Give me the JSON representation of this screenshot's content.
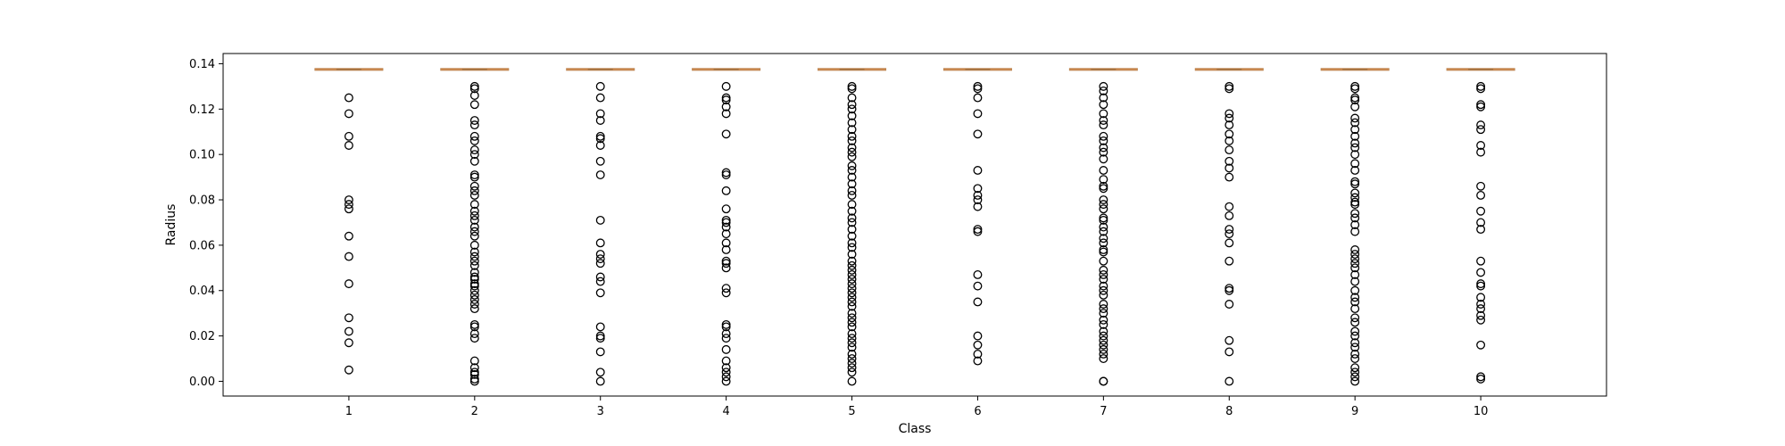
{
  "chart_data": {
    "type": "boxplot",
    "title": "",
    "xlabel": "Class",
    "ylabel": "Radius",
    "ylim": [
      -0.0065,
      0.1445
    ],
    "yticks": [
      0.0,
      0.02,
      0.04,
      0.06,
      0.08,
      0.1,
      0.12,
      0.14
    ],
    "ytick_labels": [
      "0.00",
      "0.02",
      "0.04",
      "0.06",
      "0.08",
      "0.10",
      "0.12",
      "0.14"
    ],
    "categories": [
      "1",
      "2",
      "3",
      "4",
      "5",
      "6",
      "7",
      "8",
      "9",
      "10"
    ],
    "grid": false,
    "legend": "none",
    "colors": {
      "median": "#c8874f",
      "box": "#b08050",
      "outlier_stroke": "#000000",
      "axes": "#000000"
    },
    "series": [
      {
        "category": "1",
        "q1": 0.1375,
        "median": 0.1375,
        "q3": 0.1375,
        "whisker_low": 0.1375,
        "whisker_high": 0.1375,
        "outliers": [
          0.125,
          0.118,
          0.108,
          0.104,
          0.08,
          0.078,
          0.076,
          0.064,
          0.055,
          0.043,
          0.028,
          0.022,
          0.017,
          0.005
        ]
      },
      {
        "category": "2",
        "q1": 0.1375,
        "median": 0.1375,
        "q3": 0.1375,
        "whisker_low": 0.1375,
        "whisker_high": 0.1375,
        "outliers": [
          0.13,
          0.129,
          0.126,
          0.122,
          0.115,
          0.113,
          0.108,
          0.106,
          0.102,
          0.1,
          0.097,
          0.091,
          0.09,
          0.086,
          0.084,
          0.082,
          0.078,
          0.075,
          0.073,
          0.071,
          0.068,
          0.066,
          0.064,
          0.06,
          0.057,
          0.055,
          0.053,
          0.051,
          0.048,
          0.046,
          0.045,
          0.043,
          0.042,
          0.04,
          0.038,
          0.036,
          0.034,
          0.032,
          0.025,
          0.024,
          0.021,
          0.019,
          0.009,
          0.006,
          0.004,
          0.003,
          0.001,
          0.0
        ]
      },
      {
        "category": "3",
        "q1": 0.1375,
        "median": 0.1375,
        "q3": 0.1375,
        "whisker_low": 0.1375,
        "whisker_high": 0.1375,
        "outliers": [
          0.13,
          0.125,
          0.118,
          0.115,
          0.108,
          0.107,
          0.104,
          0.097,
          0.091,
          0.071,
          0.061,
          0.056,
          0.054,
          0.052,
          0.046,
          0.044,
          0.039,
          0.024,
          0.02,
          0.019,
          0.013,
          0.004,
          0.0
        ]
      },
      {
        "category": "4",
        "q1": 0.1375,
        "median": 0.1375,
        "q3": 0.1375,
        "whisker_low": 0.1375,
        "whisker_high": 0.1375,
        "outliers": [
          0.13,
          0.125,
          0.124,
          0.121,
          0.118,
          0.109,
          0.092,
          0.091,
          0.084,
          0.076,
          0.071,
          0.07,
          0.068,
          0.065,
          0.061,
          0.058,
          0.053,
          0.052,
          0.05,
          0.041,
          0.039,
          0.025,
          0.024,
          0.021,
          0.019,
          0.014,
          0.009,
          0.006,
          0.004,
          0.002,
          0.0
        ]
      },
      {
        "category": "5",
        "q1": 0.1375,
        "median": 0.1375,
        "q3": 0.1375,
        "whisker_low": 0.1375,
        "whisker_high": 0.1375,
        "outliers": [
          0.13,
          0.129,
          0.125,
          0.122,
          0.12,
          0.117,
          0.114,
          0.111,
          0.108,
          0.106,
          0.103,
          0.101,
          0.099,
          0.095,
          0.093,
          0.09,
          0.087,
          0.084,
          0.082,
          0.078,
          0.075,
          0.072,
          0.07,
          0.067,
          0.064,
          0.061,
          0.059,
          0.056,
          0.053,
          0.051,
          0.049,
          0.047,
          0.045,
          0.043,
          0.041,
          0.039,
          0.037,
          0.035,
          0.033,
          0.03,
          0.028,
          0.026,
          0.024,
          0.021,
          0.019,
          0.017,
          0.015,
          0.012,
          0.01,
          0.008,
          0.006,
          0.004,
          0.0
        ]
      },
      {
        "category": "6",
        "q1": 0.1375,
        "median": 0.1375,
        "q3": 0.1375,
        "whisker_low": 0.1375,
        "whisker_high": 0.1375,
        "outliers": [
          0.13,
          0.129,
          0.125,
          0.118,
          0.109,
          0.093,
          0.085,
          0.082,
          0.08,
          0.077,
          0.067,
          0.066,
          0.047,
          0.042,
          0.035,
          0.02,
          0.016,
          0.012,
          0.009
        ]
      },
      {
        "category": "7",
        "q1": 0.1375,
        "median": 0.1375,
        "q3": 0.1375,
        "whisker_low": 0.1375,
        "whisker_high": 0.1375,
        "outliers": [
          0.13,
          0.128,
          0.125,
          0.122,
          0.118,
          0.115,
          0.113,
          0.108,
          0.106,
          0.103,
          0.101,
          0.098,
          0.093,
          0.089,
          0.086,
          0.085,
          0.08,
          0.078,
          0.076,
          0.072,
          0.071,
          0.068,
          0.066,
          0.063,
          0.061,
          0.058,
          0.057,
          0.053,
          0.049,
          0.047,
          0.045,
          0.042,
          0.04,
          0.038,
          0.034,
          0.032,
          0.03,
          0.027,
          0.025,
          0.022,
          0.02,
          0.018,
          0.016,
          0.014,
          0.012,
          0.01,
          0.0,
          0.0
        ]
      },
      {
        "category": "8",
        "q1": 0.1375,
        "median": 0.1375,
        "q3": 0.1375,
        "whisker_low": 0.1375,
        "whisker_high": 0.1375,
        "outliers": [
          0.13,
          0.129,
          0.118,
          0.116,
          0.113,
          0.109,
          0.106,
          0.102,
          0.097,
          0.094,
          0.09,
          0.077,
          0.073,
          0.067,
          0.065,
          0.061,
          0.053,
          0.041,
          0.04,
          0.034,
          0.018,
          0.013,
          0.0
        ]
      },
      {
        "category": "9",
        "q1": 0.1375,
        "median": 0.1375,
        "q3": 0.1375,
        "whisker_low": 0.1375,
        "whisker_high": 0.1375,
        "outliers": [
          0.13,
          0.129,
          0.125,
          0.124,
          0.121,
          0.116,
          0.114,
          0.111,
          0.108,
          0.105,
          0.103,
          0.1,
          0.096,
          0.093,
          0.088,
          0.087,
          0.083,
          0.081,
          0.079,
          0.078,
          0.074,
          0.072,
          0.069,
          0.066,
          0.058,
          0.056,
          0.054,
          0.052,
          0.05,
          0.047,
          0.044,
          0.04,
          0.037,
          0.035,
          0.032,
          0.028,
          0.026,
          0.022,
          0.02,
          0.017,
          0.015,
          0.012,
          0.01,
          0.006,
          0.004,
          0.002,
          0.0
        ]
      },
      {
        "category": "10",
        "q1": 0.1375,
        "median": 0.1375,
        "q3": 0.1375,
        "whisker_low": 0.1375,
        "whisker_high": 0.1375,
        "outliers": [
          0.13,
          0.129,
          0.122,
          0.121,
          0.113,
          0.111,
          0.104,
          0.101,
          0.086,
          0.082,
          0.075,
          0.07,
          0.067,
          0.053,
          0.048,
          0.043,
          0.042,
          0.037,
          0.034,
          0.032,
          0.029,
          0.027,
          0.016,
          0.002,
          0.001
        ]
      }
    ]
  }
}
